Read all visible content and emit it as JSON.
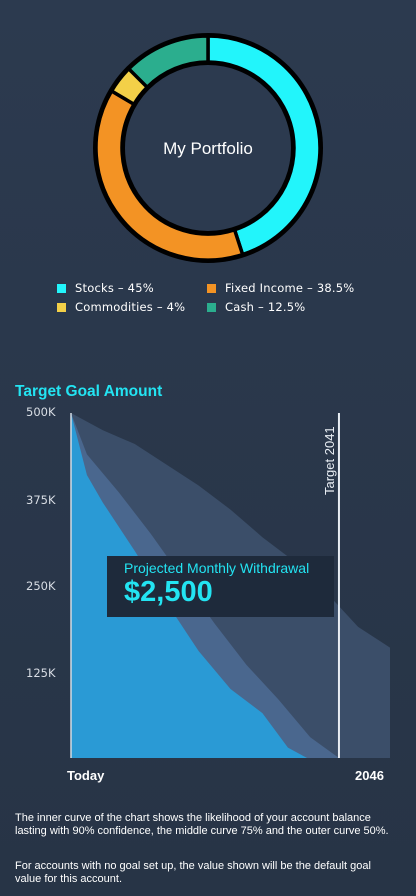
{
  "portfolio": {
    "title": "My Portfolio",
    "segments": [
      {
        "label": "Stocks",
        "percent": 45,
        "color": "#22f5fb",
        "icon": "stocks-swatch"
      },
      {
        "label": "Fixed Income",
        "percent": 38.5,
        "color": "#f39324",
        "icon": "fixed-income-swatch"
      },
      {
        "label": "Commodities",
        "percent": 4,
        "color": "#f3d048",
        "icon": "commodities-swatch"
      },
      {
        "label": "Cash",
        "percent": 12.5,
        "color": "#2bae8e",
        "icon": "cash-swatch"
      }
    ],
    "legend": [
      "Stocks – 45%",
      "Fixed Income – 38.5%",
      "Commodities – 4%",
      "Cash – 12.5%"
    ]
  },
  "goal": {
    "title": "Target Goal Amount",
    "target_label": "Target 2041",
    "projection_label": "Projected Monthly Withdrawal",
    "projection_value": "$2,500"
  },
  "chart_data": {
    "type": "area",
    "title": "Target Goal Amount",
    "y_ticks": [
      "500K",
      "375K",
      "250K",
      "125K"
    ],
    "x_ticks": [
      "Today",
      "2046"
    ],
    "ylim": [
      0,
      500000
    ],
    "xlim": [
      0,
      1
    ],
    "target_line": {
      "label": "Target 2041",
      "x": 0.84
    },
    "series": [
      {
        "name": "Outer curve 50%",
        "color": "#3b4e69",
        "points": [
          [
            0,
            500000
          ],
          [
            0.1,
            475000
          ],
          [
            0.2,
            455000
          ],
          [
            0.3,
            425000
          ],
          [
            0.4,
            395000
          ],
          [
            0.5,
            360000
          ],
          [
            0.6,
            320000
          ],
          [
            0.7,
            285000
          ],
          [
            0.8,
            240000
          ],
          [
            0.9,
            190000
          ],
          [
            1,
            160000
          ]
        ]
      },
      {
        "name": "Middle curve 75%",
        "color": "#4a678e",
        "points": [
          [
            0,
            500000
          ],
          [
            0.05,
            440000
          ],
          [
            0.15,
            385000
          ],
          [
            0.25,
            325000
          ],
          [
            0.35,
            260000
          ],
          [
            0.45,
            195000
          ],
          [
            0.55,
            135000
          ],
          [
            0.65,
            85000
          ],
          [
            0.75,
            30000
          ],
          [
            0.84,
            0
          ]
        ]
      },
      {
        "name": "Inner curve 90%",
        "color": "#2a9ad5",
        "points": [
          [
            0,
            500000
          ],
          [
            0.05,
            410000
          ],
          [
            0.1,
            370000
          ],
          [
            0.2,
            300000
          ],
          [
            0.3,
            225000
          ],
          [
            0.4,
            155000
          ],
          [
            0.5,
            100000
          ],
          [
            0.6,
            65000
          ],
          [
            0.68,
            15000
          ],
          [
            0.74,
            0
          ]
        ]
      }
    ]
  },
  "notes": [
    "The inner curve of the chart shows the likelihood of your account balance lasting with 90% confidence, the middle curve 75% and the outer curve 50%.",
    "For accounts with no goal set up, the value shown will be the default goal value for this account."
  ]
}
